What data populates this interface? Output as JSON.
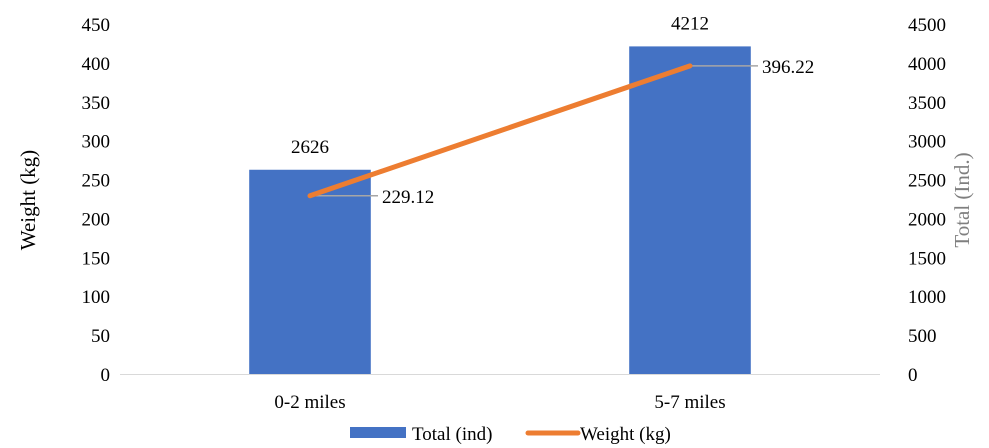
{
  "chart_data": {
    "type": "bar",
    "categories": [
      "0-2 miles",
      "5-7 miles"
    ],
    "series": [
      {
        "name": "Total (ind)",
        "type": "bar",
        "axis": "right",
        "color": "#4472C4",
        "values": [
          2626,
          4212
        ],
        "labels": [
          "2626",
          "4212"
        ]
      },
      {
        "name": "Weight (kg)",
        "type": "line",
        "axis": "left",
        "color": "#ED7D31",
        "values": [
          229.12,
          396.22
        ],
        "labels": [
          "229.12",
          "396.22"
        ]
      }
    ],
    "ylabel": "Weight (kg)",
    "ylabel_right": "Total (Ind.)",
    "ylim": [
      0,
      450
    ],
    "ylim_right": [
      0,
      4500
    ],
    "yticks": [
      "0",
      "50",
      "100",
      "150",
      "200",
      "250",
      "300",
      "350",
      "400",
      "450"
    ],
    "yticks_right": [
      "0",
      "500",
      "1000",
      "1500",
      "2000",
      "2500",
      "3000",
      "3500",
      "4000",
      "4500"
    ],
    "legend_position": "bottom",
    "grid": false,
    "colors": {
      "axis_line": "#D9D9D9",
      "leader_line": "#A6A6A6",
      "right_axis_title": "#7F7F7F"
    }
  }
}
